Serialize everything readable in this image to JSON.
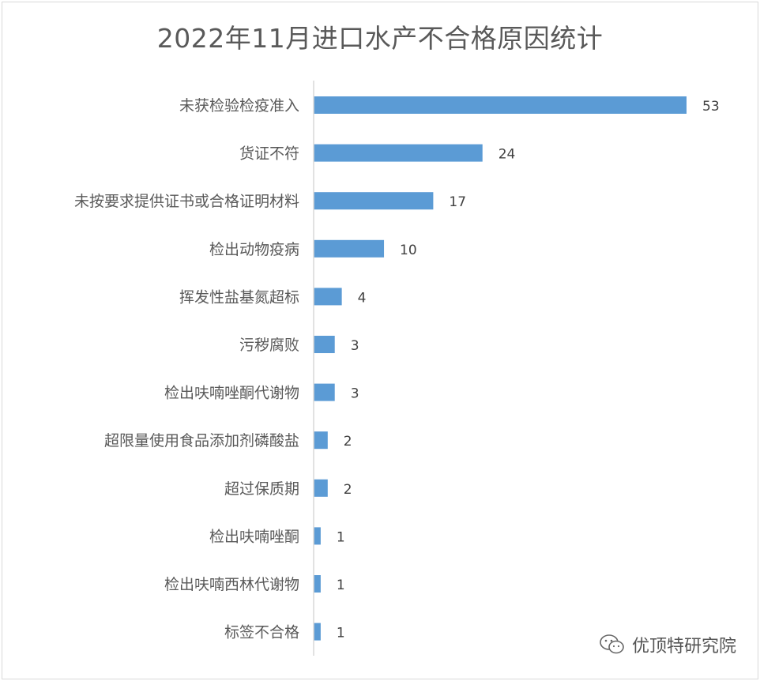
{
  "chart_data": {
    "type": "bar",
    "orientation": "horizontal",
    "title": "2022年11月进口水产不合格原因统计",
    "categories": [
      "未获检验检疫准入",
      "货证不符",
      "未按要求提供证书或合格证明材料",
      "检出动物疫病",
      "挥发性盐基氮超标",
      "污秽腐败",
      "检出呋喃唑酮代谢物",
      "超限量使用食品添加剂磷酸盐",
      "超过保质期",
      "检出呋喃唑酮",
      "检出呋喃西林代谢物",
      "标签不合格"
    ],
    "values": [
      53,
      24,
      17,
      10,
      4,
      3,
      3,
      2,
      2,
      1,
      1,
      1
    ],
    "xlim": [
      0,
      53
    ],
    "grid": false,
    "data_labels": true,
    "bar_color": "#5b9bd5"
  },
  "watermark": {
    "text": "优顶特研究院",
    "icon": "wechat-icon"
  }
}
